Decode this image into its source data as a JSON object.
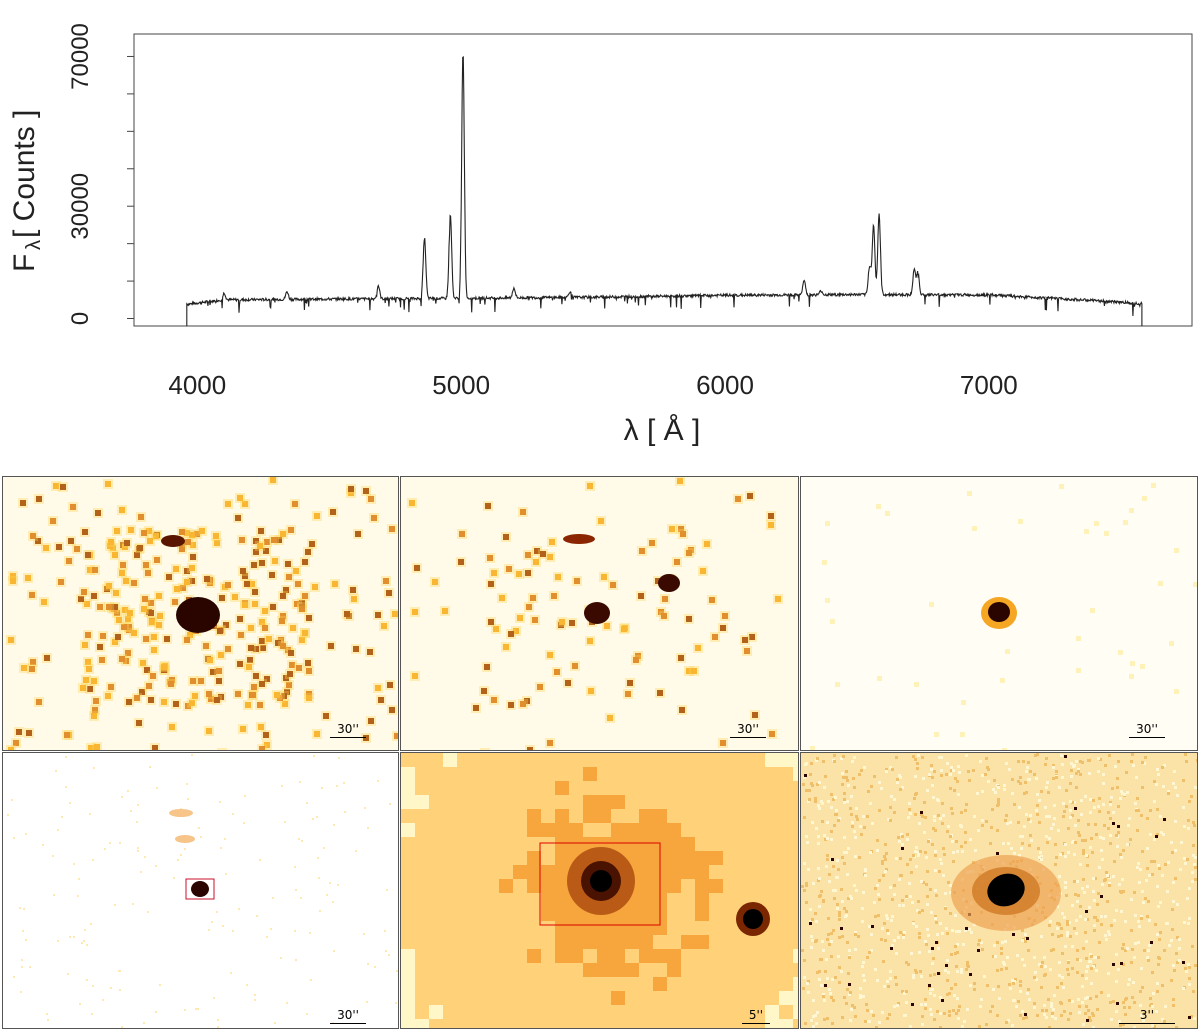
{
  "chart_data": {
    "type": "line",
    "ylabel_main": "F",
    "ylabel_sub": "λ",
    "ylabel_unit": "[ Counts ]",
    "xlabel": "λ [ Å ]",
    "xlim": [
      3760,
      7770
    ],
    "ylim": [
      -2000,
      76000
    ],
    "x_ticks": [
      4000,
      5000,
      6000,
      7000
    ],
    "y_ticks": [
      0,
      30000,
      70000
    ],
    "y_minor_ticks": [
      0,
      10000,
      20000,
      30000,
      40000,
      50000,
      60000,
      70000
    ],
    "series": [
      {
        "continuum": [
          [
            3960,
            3800
          ],
          [
            4100,
            5000
          ],
          [
            4500,
            5200
          ],
          [
            5000,
            5400
          ],
          [
            5500,
            5700
          ],
          [
            6000,
            6200
          ],
          [
            6500,
            6400
          ],
          [
            7000,
            6300
          ],
          [
            7400,
            4800
          ],
          [
            7580,
            4000
          ]
        ],
        "lines": [
          {
            "x": 4102,
            "y": 6800
          },
          {
            "x": 4340,
            "y": 7200
          },
          {
            "x": 4686,
            "y": 8800
          },
          {
            "x": 4861,
            "y": 21500
          },
          {
            "x": 4959,
            "y": 28000
          },
          {
            "x": 5007,
            "y": 71000
          },
          {
            "x": 5200,
            "y": 8200
          },
          {
            "x": 5412,
            "y": 7200
          },
          {
            "x": 6300,
            "y": 10200
          },
          {
            "x": 6364,
            "y": 7400
          },
          {
            "x": 6548,
            "y": 14000
          },
          {
            "x": 6563,
            "y": 25000
          },
          {
            "x": 6584,
            "y": 28000
          },
          {
            "x": 6717,
            "y": 13000
          },
          {
            "x": 6731,
            "y": 12500
          }
        ]
      }
    ]
  },
  "panels": [
    {
      "scale": "30''",
      "style": "dots-dense"
    },
    {
      "scale": "30''",
      "style": "dots-sparse"
    },
    {
      "scale": "30''",
      "style": "single-blob"
    },
    {
      "scale": "30''",
      "style": "faint-with-box"
    },
    {
      "scale": "5''",
      "style": "zoom-smooth"
    },
    {
      "scale": "3''",
      "style": "noisy-spiral"
    }
  ]
}
